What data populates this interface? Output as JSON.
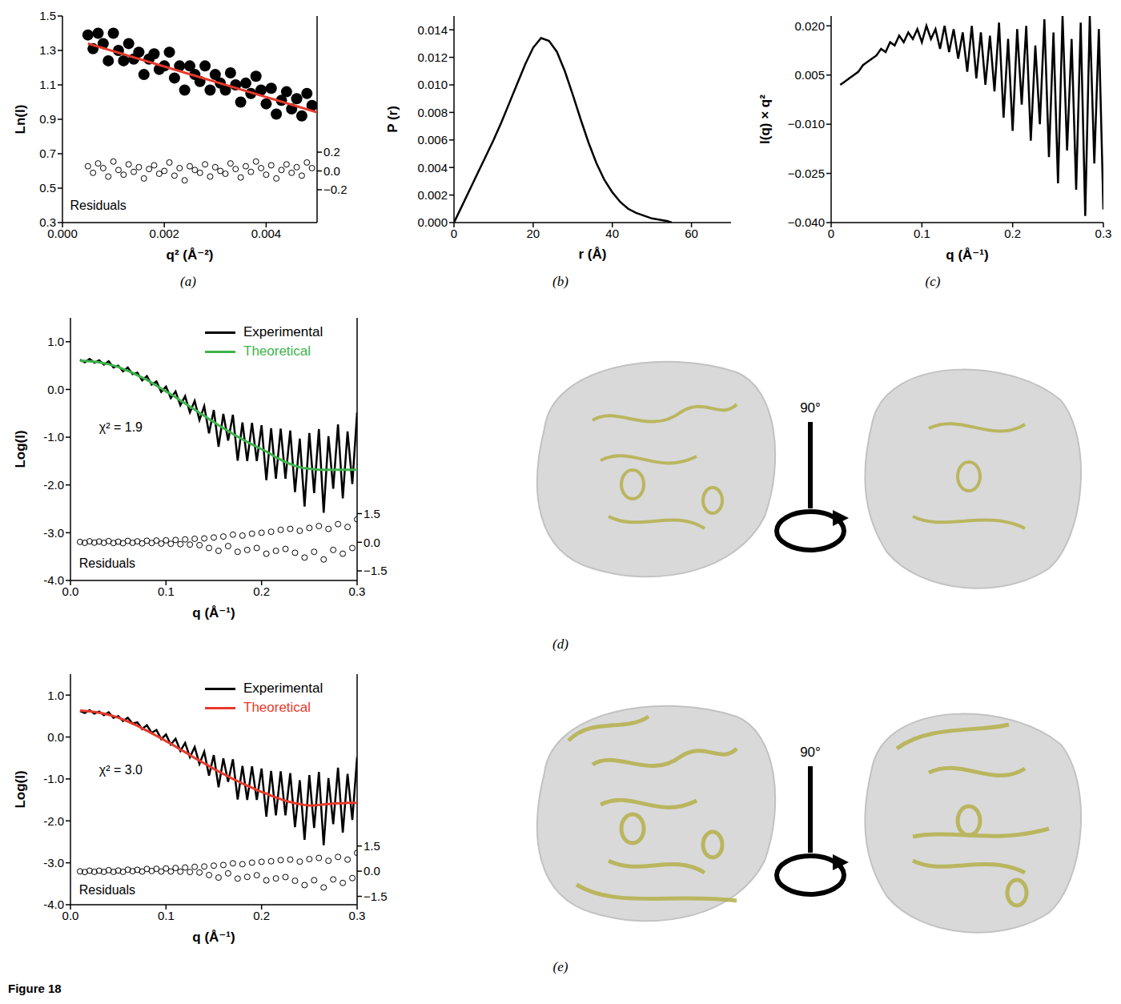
{
  "figure_label": "Figure 18",
  "chart_data": [
    {
      "panel": "(a)",
      "type": "scatter",
      "x_label": "q² (Å⁻²)",
      "y_label": "Ln(I)",
      "xlim": [
        0,
        0.005
      ],
      "xticks": [
        {
          "value": 0,
          "label": "0.000"
        },
        0.002,
        0.004
      ],
      "ylim": [
        0.3,
        1.5
      ],
      "yticks": [
        0.3,
        0.5,
        0.7,
        0.9,
        1.1,
        1.3,
        1.5
      ],
      "y2lim": [
        -0.55,
        1.65
      ],
      "y2ticks": [
        {
          "value": -0.2,
          "label": "−0.2"
        },
        {
          "value": 0,
          "label": "0.0"
        },
        0.2
      ],
      "x": [
        0.0005,
        0.0006,
        0.0007,
        0.0008,
        0.0009,
        0.001,
        0.0011,
        0.0012,
        0.0013,
        0.0014,
        0.0015,
        0.0016,
        0.0017,
        0.0018,
        0.0019,
        0.002,
        0.0021,
        0.0022,
        0.0023,
        0.0024,
        0.0025,
        0.0026,
        0.0027,
        0.0028,
        0.0029,
        0.003,
        0.0031,
        0.0032,
        0.0033,
        0.0034,
        0.0035,
        0.0036,
        0.0037,
        0.0038,
        0.0039,
        0.004,
        0.0041,
        0.0042,
        0.0043,
        0.0044,
        0.0045,
        0.0046,
        0.0047,
        0.0048,
        0.0049
      ],
      "series": [
        {
          "type": "scatter",
          "marker": "circle",
          "color": "#000000",
          "values": [
            1.39,
            1.31,
            1.4,
            1.34,
            1.24,
            1.4,
            1.3,
            1.24,
            1.34,
            1.25,
            1.29,
            1.16,
            1.25,
            1.28,
            1.19,
            1.21,
            1.29,
            1.14,
            1.21,
            1.07,
            1.21,
            1.16,
            1.12,
            1.21,
            1.07,
            1.16,
            1.11,
            1.07,
            1.17,
            1.1,
            1.0,
            1.11,
            1.05,
            1.15,
            1.07,
            0.99,
            1.08,
            0.93,
            1.01,
            1.06,
            0.96,
            1.02,
            0.92,
            1.05,
            0.98
          ]
        },
        {
          "type": "line",
          "color": "#e8392b",
          "x": [
            0.0005,
            0.005
          ],
          "values": [
            1.34,
            0.94
          ]
        }
      ],
      "residuals": {
        "label": "Residuals",
        "axis": "y2",
        "marker": "open_circle",
        "color": "#000000",
        "values": [
          0.05,
          -0.02,
          0.08,
          0.03,
          -0.06,
          0.1,
          0.01,
          -0.04,
          0.07,
          -0.01,
          0.04,
          -0.08,
          0.02,
          0.06,
          -0.03,
          0.0,
          0.09,
          -0.05,
          0.03,
          -0.1,
          0.05,
          0.01,
          -0.02,
          0.07,
          -0.06,
          0.04,
          0.0,
          -0.03,
          0.08,
          0.02,
          -0.07,
          0.05,
          -0.01,
          0.1,
          0.03,
          -0.04,
          0.06,
          -0.08,
          0.01,
          0.07,
          -0.02,
          0.04,
          -0.05,
          0.09,
          0.03
        ]
      }
    },
    {
      "panel": "(b)",
      "type": "line",
      "x_label": "r (Å)",
      "y_label": "P (r)",
      "xlim": [
        0,
        70
      ],
      "xticks": [
        0,
        20,
        40,
        60
      ],
      "ylim": [
        0,
        0.015
      ],
      "yticks": [
        {
          "value": 0,
          "label": "0.000"
        },
        0.002,
        0.004,
        0.006,
        0.008,
        {
          "value": 0.01,
          "label": "0.010"
        },
        0.012,
        0.014
      ],
      "x": [
        0,
        2,
        4,
        6,
        8,
        10,
        12,
        14,
        16,
        18,
        20,
        22,
        24,
        26,
        28,
        30,
        32,
        34,
        36,
        38,
        40,
        42,
        44,
        46,
        48,
        50,
        52,
        54,
        55
      ],
      "series": [
        {
          "type": "line",
          "color": "#000000",
          "values": [
            0,
            0.0012,
            0.0024,
            0.0036,
            0.0048,
            0.006,
            0.0073,
            0.0087,
            0.0101,
            0.0115,
            0.0127,
            0.0134,
            0.0132,
            0.0124,
            0.011,
            0.0093,
            0.0075,
            0.0058,
            0.0043,
            0.0031,
            0.0022,
            0.0015,
            0.001,
            0.0007,
            0.0005,
            0.0003,
            0.0002,
            0.0001,
            0
          ]
        }
      ]
    },
    {
      "panel": "(c)",
      "type": "line",
      "x_label": "q (Å⁻¹)",
      "y_label": "I(q) × q²",
      "xlim": [
        0,
        0.3
      ],
      "xticks": [
        0,
        0.1,
        0.2,
        0.3
      ],
      "ylim": [
        -0.04,
        0.023
      ],
      "yticks": [
        {
          "value": -0.04,
          "label": "−0.040"
        },
        {
          "value": -0.025,
          "label": "−0.025"
        },
        {
          "value": -0.01,
          "label": "−0.010"
        },
        0.005,
        {
          "value": 0.02,
          "label": "0.020"
        }
      ],
      "x": [
        0.01,
        0.015,
        0.02,
        0.025,
        0.03,
        0.035,
        0.04,
        0.045,
        0.05,
        0.055,
        0.06,
        0.065,
        0.07,
        0.075,
        0.08,
        0.085,
        0.09,
        0.095,
        0.1,
        0.105,
        0.11,
        0.115,
        0.12,
        0.125,
        0.13,
        0.135,
        0.14,
        0.145,
        0.15,
        0.155,
        0.16,
        0.165,
        0.17,
        0.175,
        0.18,
        0.185,
        0.19,
        0.195,
        0.2,
        0.205,
        0.21,
        0.215,
        0.22,
        0.225,
        0.23,
        0.235,
        0.24,
        0.245,
        0.25,
        0.255,
        0.26,
        0.265,
        0.27,
        0.275,
        0.28,
        0.285,
        0.29,
        0.295,
        0.3
      ],
      "series": [
        {
          "type": "line",
          "color": "#000000",
          "values": [
            0.002,
            0.003,
            0.004,
            0.005,
            0.006,
            0.008,
            0.009,
            0.01,
            0.011,
            0.013,
            0.012,
            0.015,
            0.014,
            0.017,
            0.015,
            0.018,
            0.016,
            0.019,
            0.015,
            0.02,
            0.016,
            0.019,
            0.013,
            0.02,
            0.012,
            0.019,
            0.01,
            0.018,
            0.006,
            0.02,
            0.004,
            0.018,
            0.002,
            0.017,
            0.0,
            0.021,
            -0.008,
            0.016,
            -0.012,
            0.019,
            -0.004,
            0.02,
            -0.015,
            0.014,
            -0.01,
            0.022,
            -0.02,
            0.018,
            -0.028,
            0.023,
            -0.018,
            0.016,
            -0.03,
            0.021,
            -0.038,
            0.023,
            -0.022,
            0.019,
            -0.036
          ]
        }
      ]
    },
    {
      "panel": "(d)",
      "type": "line",
      "x_label": "q (Å⁻¹)",
      "y_label": "Log(I)",
      "legend": "upper right",
      "annotations": [
        "χ² = 1.9"
      ],
      "rotation_label": "90°",
      "xlim": [
        0,
        0.3
      ],
      "xticks": [
        {
          "value": 0,
          "label": "0.0"
        },
        0.1,
        0.2,
        0.3
      ],
      "ylim": [
        -4,
        1.5
      ],
      "yticks": [
        {
          "value": -4,
          "label": "-4.0"
        },
        {
          "value": -3,
          "label": "-3.0"
        },
        {
          "value": -2,
          "label": "-2.0"
        },
        {
          "value": -1,
          "label": "-1.0"
        },
        {
          "value": 0,
          "label": "0.0"
        },
        {
          "value": 1,
          "label": "1.0"
        }
      ],
      "y2lim": [
        -2,
        11.75
      ],
      "y2ticks": [
        {
          "value": -1.5,
          "label": "−1.5"
        },
        {
          "value": 0,
          "label": "0.0"
        },
        1.5
      ],
      "x": [
        0.01,
        0.015,
        0.02,
        0.025,
        0.03,
        0.035,
        0.04,
        0.045,
        0.05,
        0.055,
        0.06,
        0.065,
        0.07,
        0.075,
        0.08,
        0.085,
        0.09,
        0.095,
        0.1,
        0.105,
        0.11,
        0.115,
        0.12,
        0.125,
        0.13,
        0.135,
        0.14,
        0.145,
        0.15,
        0.155,
        0.16,
        0.165,
        0.17,
        0.175,
        0.18,
        0.185,
        0.19,
        0.195,
        0.2,
        0.205,
        0.21,
        0.215,
        0.22,
        0.225,
        0.23,
        0.235,
        0.24,
        0.245,
        0.25,
        0.255,
        0.26,
        0.265,
        0.27,
        0.275,
        0.28,
        0.285,
        0.29,
        0.295,
        0.3
      ],
      "series": [
        {
          "name": "Experimental",
          "type": "line",
          "color": "#000000",
          "values": [
            0.62,
            0.57,
            0.64,
            0.56,
            0.61,
            0.52,
            0.59,
            0.46,
            0.5,
            0.38,
            0.46,
            0.32,
            0.35,
            0.19,
            0.28,
            0.1,
            0.17,
            -0.05,
            0.06,
            -0.18,
            -0.04,
            -0.33,
            -0.14,
            -0.48,
            -0.24,
            -0.64,
            -0.35,
            -0.92,
            -0.43,
            -1.2,
            -0.51,
            -1.07,
            -0.53,
            -1.49,
            -0.69,
            -1.5,
            -0.7,
            -1.5,
            -0.75,
            -1.9,
            -0.81,
            -1.87,
            -0.82,
            -1.87,
            -0.86,
            -2.15,
            -1.03,
            -2.45,
            -0.91,
            -2.17,
            -0.83,
            -2.58,
            -0.98,
            -2.08,
            -0.73,
            -2.28,
            -0.88,
            -1.98,
            -0.48
          ]
        },
        {
          "name": "Theoretical",
          "type": "line",
          "color": "#3cb44b",
          "values": [
            0.6,
            0.6,
            0.59,
            0.58,
            0.57,
            0.55,
            0.53,
            0.5,
            0.47,
            0.43,
            0.39,
            0.35,
            0.3,
            0.25,
            0.2,
            0.14,
            0.08,
            0.02,
            -0.04,
            -0.1,
            -0.16,
            -0.23,
            -0.29,
            -0.36,
            -0.42,
            -0.49,
            -0.55,
            -0.62,
            -0.68,
            -0.75,
            -0.81,
            -0.87,
            -0.93,
            -0.99,
            -1.04,
            -1.1,
            -1.15,
            -1.2,
            -1.25,
            -1.3,
            -1.36,
            -1.42,
            -1.47,
            -1.52,
            -1.56,
            -1.6,
            -1.63,
            -1.65,
            -1.66,
            -1.67,
            -1.68,
            -1.68,
            -1.68,
            -1.68,
            -1.68,
            -1.68,
            -1.68,
            -1.68,
            -1.68
          ]
        }
      ],
      "residuals": {
        "label": "Residuals",
        "axis": "y2",
        "marker": "open_circle",
        "color": "#000000",
        "values": [
          0.02,
          -0.03,
          0.05,
          -0.02,
          0.04,
          -0.03,
          0.06,
          -0.04,
          0.03,
          -0.05,
          0.07,
          -0.03,
          0.05,
          -0.06,
          0.08,
          -0.04,
          0.09,
          -0.07,
          0.1,
          -0.08,
          0.12,
          -0.1,
          0.15,
          -0.12,
          0.18,
          -0.15,
          0.2,
          -0.3,
          0.25,
          -0.45,
          0.3,
          -0.2,
          0.4,
          -0.5,
          0.35,
          -0.4,
          0.45,
          -0.3,
          0.5,
          -0.6,
          0.55,
          -0.45,
          0.65,
          -0.35,
          0.7,
          -0.55,
          0.6,
          -0.8,
          0.75,
          -0.5,
          0.85,
          -0.9,
          0.7,
          -0.4,
          0.95,
          -0.6,
          0.8,
          -0.3,
          1.2
        ]
      }
    },
    {
      "panel": "(e)",
      "type": "line",
      "x_label": "q (Å⁻¹)",
      "y_label": "Log(I)",
      "legend": "upper right",
      "annotations": [
        "χ² = 3.0"
      ],
      "rotation_label": "90°",
      "xlim": [
        0,
        0.3
      ],
      "xticks": [
        {
          "value": 0,
          "label": "0.0"
        },
        0.1,
        0.2,
        0.3
      ],
      "ylim": [
        -4,
        1.5
      ],
      "yticks": [
        {
          "value": -4,
          "label": "-4.0"
        },
        {
          "value": -3,
          "label": "-3.0"
        },
        {
          "value": -2,
          "label": "-2.0"
        },
        {
          "value": -1,
          "label": "-1.0"
        },
        {
          "value": 0,
          "label": "0.0"
        },
        {
          "value": 1,
          "label": "1.0"
        }
      ],
      "y2lim": [
        -2,
        11.75
      ],
      "y2ticks": [
        {
          "value": -1.5,
          "label": "−1.5"
        },
        {
          "value": 0,
          "label": "0.0"
        },
        1.5
      ],
      "x": [
        0.01,
        0.015,
        0.02,
        0.025,
        0.03,
        0.035,
        0.04,
        0.045,
        0.05,
        0.055,
        0.06,
        0.065,
        0.07,
        0.075,
        0.08,
        0.085,
        0.09,
        0.095,
        0.1,
        0.105,
        0.11,
        0.115,
        0.12,
        0.125,
        0.13,
        0.135,
        0.14,
        0.145,
        0.15,
        0.155,
        0.16,
        0.165,
        0.17,
        0.175,
        0.18,
        0.185,
        0.19,
        0.195,
        0.2,
        0.205,
        0.21,
        0.215,
        0.22,
        0.225,
        0.23,
        0.235,
        0.24,
        0.245,
        0.25,
        0.255,
        0.26,
        0.265,
        0.27,
        0.275,
        0.28,
        0.285,
        0.29,
        0.295,
        0.3
      ],
      "series": [
        {
          "name": "Experimental",
          "type": "line",
          "color": "#000000",
          "values": [
            0.62,
            0.57,
            0.64,
            0.56,
            0.61,
            0.52,
            0.59,
            0.46,
            0.5,
            0.38,
            0.46,
            0.32,
            0.35,
            0.19,
            0.28,
            0.1,
            0.17,
            -0.05,
            0.06,
            -0.18,
            -0.04,
            -0.33,
            -0.14,
            -0.48,
            -0.24,
            -0.64,
            -0.35,
            -0.92,
            -0.43,
            -1.2,
            -0.51,
            -1.07,
            -0.53,
            -1.49,
            -0.69,
            -1.5,
            -0.7,
            -1.5,
            -0.75,
            -1.9,
            -0.81,
            -1.87,
            -0.82,
            -1.87,
            -0.86,
            -2.15,
            -1.03,
            -2.45,
            -0.91,
            -2.17,
            -0.83,
            -2.58,
            -0.98,
            -2.08,
            -0.73,
            -2.28,
            -0.88,
            -1.98,
            -0.48
          ]
        },
        {
          "name": "Theoretical",
          "type": "line",
          "color": "#e8392b",
          "values": [
            0.63,
            0.62,
            0.61,
            0.6,
            0.58,
            0.56,
            0.53,
            0.5,
            0.46,
            0.42,
            0.37,
            0.32,
            0.27,
            0.21,
            0.15,
            0.09,
            0.03,
            -0.03,
            -0.1,
            -0.16,
            -0.23,
            -0.3,
            -0.36,
            -0.43,
            -0.5,
            -0.56,
            -0.63,
            -0.69,
            -0.76,
            -0.82,
            -0.88,
            -0.94,
            -1.0,
            -1.05,
            -1.11,
            -1.16,
            -1.21,
            -1.26,
            -1.31,
            -1.35,
            -1.4,
            -1.44,
            -1.48,
            -1.52,
            -1.55,
            -1.58,
            -1.6,
            -1.62,
            -1.63,
            -1.63,
            -1.62,
            -1.61,
            -1.6,
            -1.59,
            -1.58,
            -1.58,
            -1.57,
            -1.57,
            -1.57
          ]
        }
      ],
      "residuals": {
        "label": "Residuals",
        "axis": "y2",
        "marker": "open_circle",
        "color": "#000000",
        "values": [
          -0.01,
          -0.05,
          0.03,
          -0.04,
          0.03,
          -0.04,
          0.06,
          -0.04,
          0.04,
          -0.04,
          0.09,
          0.0,
          0.08,
          -0.02,
          0.13,
          0.01,
          0.14,
          -0.02,
          0.16,
          -0.02,
          0.19,
          -0.03,
          0.22,
          -0.05,
          0.26,
          -0.08,
          0.28,
          -0.23,
          0.33,
          -0.38,
          0.37,
          -0.13,
          0.47,
          -0.44,
          0.42,
          -0.34,
          0.51,
          -0.24,
          0.56,
          -0.55,
          0.59,
          -0.43,
          0.66,
          -0.35,
          0.69,
          -0.57,
          0.57,
          -0.83,
          0.72,
          -0.54,
          0.79,
          -0.97,
          0.62,
          -0.49,
          0.85,
          -0.7,
          0.69,
          -0.41,
          1.09
        ]
      }
    }
  ]
}
